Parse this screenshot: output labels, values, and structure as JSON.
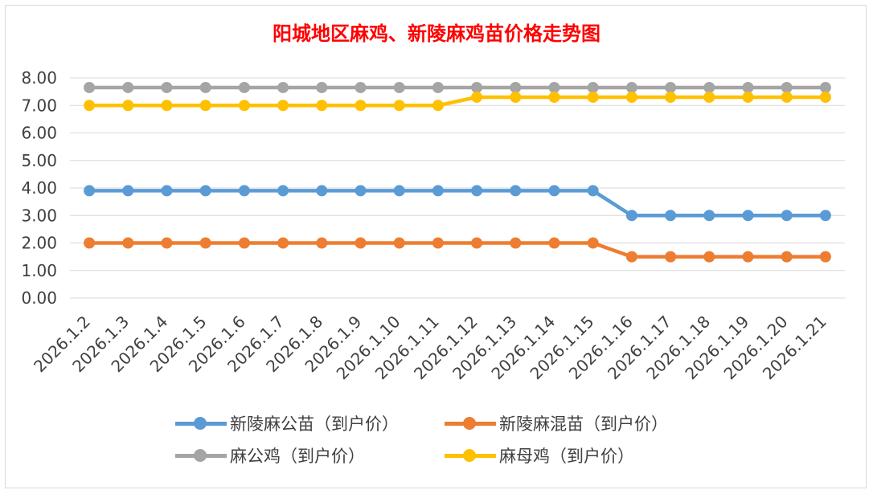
{
  "chart_data": {
    "type": "line",
    "title": "阳城地区麻鸡、新陵麻鸡苗价格走势图",
    "xlabel": "",
    "ylabel": "",
    "ylim": [
      0,
      8
    ],
    "y_ticks": [
      "0.00",
      "1.00",
      "2.00",
      "3.00",
      "4.00",
      "5.00",
      "6.00",
      "7.00",
      "8.00"
    ],
    "grid": true,
    "legend_position": "bottom",
    "categories": [
      "2026.1.2",
      "2026.1.3",
      "2026.1.4",
      "2026.1.5",
      "2026.1.6",
      "2026.1.7",
      "2026.1.8",
      "2026.1.9",
      "2026.1.10",
      "2026.1.11",
      "2026.1.12",
      "2026.1.13",
      "2026.1.14",
      "2026.1.15",
      "2026.1.16",
      "2026.1.17",
      "2026.1.18",
      "2026.1.19",
      "2026.1.20",
      "2026.1.21"
    ],
    "series": [
      {
        "name": "新陵麻公苗（到户价）",
        "color": "#5b9bd5",
        "values": [
          3.9,
          3.9,
          3.9,
          3.9,
          3.9,
          3.9,
          3.9,
          3.9,
          3.9,
          3.9,
          3.9,
          3.9,
          3.9,
          3.9,
          3.0,
          3.0,
          3.0,
          3.0,
          3.0,
          3.0
        ]
      },
      {
        "name": "新陵麻混苗（到户价）",
        "color": "#ed7d31",
        "values": [
          2.0,
          2.0,
          2.0,
          2.0,
          2.0,
          2.0,
          2.0,
          2.0,
          2.0,
          2.0,
          2.0,
          2.0,
          2.0,
          2.0,
          1.5,
          1.5,
          1.5,
          1.5,
          1.5,
          1.5
        ]
      },
      {
        "name": "麻公鸡（到户价）",
        "color": "#a5a5a5",
        "values": [
          7.65,
          7.65,
          7.65,
          7.65,
          7.65,
          7.65,
          7.65,
          7.65,
          7.65,
          7.65,
          7.65,
          7.65,
          7.65,
          7.65,
          7.65,
          7.65,
          7.65,
          7.65,
          7.65,
          7.65
        ]
      },
      {
        "name": "麻母鸡（到户价）",
        "color": "#ffc000",
        "values": [
          7.0,
          7.0,
          7.0,
          7.0,
          7.0,
          7.0,
          7.0,
          7.0,
          7.0,
          7.0,
          7.3,
          7.3,
          7.3,
          7.3,
          7.3,
          7.3,
          7.3,
          7.3,
          7.3,
          7.3
        ]
      }
    ]
  }
}
